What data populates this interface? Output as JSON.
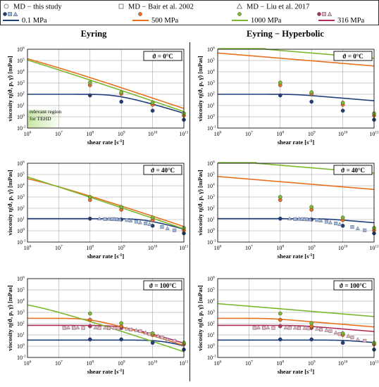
{
  "legend": {
    "markers": [
      {
        "id": "md_this",
        "label": "MD − this study",
        "shape": "circle"
      },
      {
        "id": "md_bair",
        "label": "MD − Bair et al. 2002",
        "shape": "square"
      },
      {
        "id": "md_liu",
        "label": "MD − Liu et al. 2017",
        "shape": "triangle"
      }
    ],
    "lines": [
      {
        "id": "p01",
        "label": "0.1 MPa",
        "color": "#1f3f7a"
      },
      {
        "id": "p500",
        "label": "500 MPa",
        "color": "#e8701f"
      },
      {
        "id": "p1000",
        "label": "1000 MPa",
        "color": "#7cb82f"
      },
      {
        "id": "p316",
        "label": "316 MPa",
        "color": "#b0305a"
      }
    ]
  },
  "colors": {
    "p01": "#1f3f7a",
    "p500": "#e8701f",
    "p1000": "#7cb82f",
    "p316": "#b0305a",
    "relevant": "#c7e5a4"
  },
  "columns": [
    {
      "title": "Eyring"
    },
    {
      "title": "Eyring − Hyperbolic"
    }
  ],
  "axis": {
    "xlabel": "shear rate [s",
    "xlabel_sup": "-1",
    "xlabel_end": "]",
    "ylabel": "viscosity η(ϑ, p, γ̇) [mPas]",
    "x_exponents": [
      6,
      7,
      8,
      9,
      10,
      11
    ],
    "y_exponents": [
      -1,
      0,
      1,
      2,
      3,
      4,
      5,
      6
    ],
    "tick_base": "10",
    "xlim_log10": [
      6,
      11
    ],
    "ylim_log10": [
      -1,
      6
    ],
    "xscale": "log",
    "yscale": "log",
    "grid": true
  },
  "annotation": {
    "line1": "relevant region",
    "line2": "for TEHD",
    "x_range_log10": [
      6,
      7.1
    ]
  },
  "chart_data": [
    {
      "type": "line",
      "col": 0,
      "row": 0,
      "temp_label": "ϑ = 0°C",
      "series": [
        {
          "key": "p01",
          "eta0": 100,
          "tau": 32000000000.0,
          "n": 0.77,
          "hyperbolic": false
        },
        {
          "key": "p500",
          "eta0": 1000000.0,
          "tau": 35000000000.0,
          "n": 0.77,
          "hyperbolic": false
        },
        {
          "key": "p1000",
          "eta0": 10000000.0,
          "tau": 15500000000.0,
          "n": 0.77,
          "hyperbolic": false
        }
      ],
      "points": [
        {
          "key": "p01",
          "shape": "circle",
          "x": [
            100000000.0,
            1000000000.0,
            10000000000.0,
            100000000000.0
          ],
          "y": [
            80,
            22,
            3.5,
            0.55
          ]
        },
        {
          "key": "p500",
          "shape": "circle",
          "x": [
            100000000.0,
            1000000000.0,
            10000000000.0,
            100000000000.0
          ],
          "y": [
            650,
            110,
            12,
            1.3
          ]
        },
        {
          "key": "p1000",
          "shape": "circle",
          "x": [
            100000000.0,
            1000000000.0,
            10000000000.0,
            100000000000.0
          ],
          "y": [
            1100,
            150,
            18,
            2.0
          ]
        }
      ]
    },
    {
      "type": "line",
      "col": 1,
      "row": 0,
      "temp_label": "ϑ = 0°C",
      "series": [
        {
          "key": "p01",
          "eta0": 100,
          "tau": 32000000000.0,
          "n": 0.77,
          "hyperbolic": true
        },
        {
          "key": "p500",
          "eta0": 1000000.0,
          "tau": 35000000000.0,
          "n": 0.77,
          "hyperbolic": true
        },
        {
          "key": "p1000",
          "eta0": 10000000.0,
          "tau": 15500000000.0,
          "n": 0.77,
          "hyperbolic": true
        }
      ],
      "points": [
        {
          "key": "p01",
          "shape": "circle",
          "x": [
            100000000.0,
            1000000000.0,
            10000000000.0,
            100000000000.0
          ],
          "y": [
            80,
            22,
            3.5,
            0.55
          ]
        },
        {
          "key": "p500",
          "shape": "circle",
          "x": [
            100000000.0,
            1000000000.0,
            10000000000.0,
            100000000000.0
          ],
          "y": [
            650,
            110,
            12,
            1.3
          ]
        },
        {
          "key": "p1000",
          "shape": "circle",
          "x": [
            100000000.0,
            1000000000.0,
            10000000000.0,
            100000000000.0
          ],
          "y": [
            1100,
            150,
            18,
            2.0
          ]
        }
      ]
    },
    {
      "type": "line",
      "col": 0,
      "row": 1,
      "temp_label": "ϑ = 40°C",
      "series": [
        {
          "key": "p01",
          "eta0": 12,
          "tau": 32000000000.0,
          "n": 0.77,
          "hyperbolic": false
        },
        {
          "key": "p500",
          "eta0": 100000.0,
          "tau": 17000000000.0,
          "n": 0.77,
          "hyperbolic": false
        },
        {
          "key": "p1000",
          "eta0": 10000000.0,
          "tau": 7700000000.0,
          "n": 0.77,
          "hyperbolic": false
        }
      ],
      "points": [
        {
          "key": "p01",
          "shape": "circle",
          "x": [
            100000000.0,
            1000000000.0,
            10000000000.0,
            100000000000.0
          ],
          "y": [
            12,
            10,
            2.8,
            0.6
          ]
        },
        {
          "key": "p01",
          "shape": "square",
          "x": [
            300000000.0,
            500000000.0,
            700000000.0,
            1500000000.0,
            3000000000.0,
            6000000000.0,
            20000000000.0,
            50000000000.0
          ],
          "y": [
            11,
            11,
            10.5,
            9,
            6.5,
            4.5,
            2.2,
            1.1
          ]
        },
        {
          "key": "p01",
          "shape": "triangle",
          "x": [
            200000000.0,
            400000000.0,
            600000000.0,
            900000000.0,
            2000000000.0,
            4000000000.0,
            8000000000.0,
            30000000000.0
          ],
          "y": [
            12,
            11.5,
            11,
            10,
            8,
            5.5,
            3.8,
            1.6
          ]
        },
        {
          "key": "p500",
          "shape": "circle",
          "x": [
            100000000.0,
            1000000000.0,
            10000000000.0,
            100000000000.0
          ],
          "y": [
            550,
            75,
            9,
            1.1
          ]
        },
        {
          "key": "p1000",
          "shape": "circle",
          "x": [
            100000000.0,
            1000000000.0,
            10000000000.0,
            100000000000.0
          ],
          "y": [
            1000,
            130,
            15,
            1.8
          ]
        }
      ]
    },
    {
      "type": "line",
      "col": 1,
      "row": 1,
      "temp_label": "ϑ = 40°C",
      "series": [
        {
          "key": "p01",
          "eta0": 12,
          "tau": 32000000000.0,
          "n": 0.77,
          "hyperbolic": true
        },
        {
          "key": "p500",
          "eta0": 100000.0,
          "tau": 17000000000.0,
          "n": 0.77,
          "hyperbolic": true
        },
        {
          "key": "p1000",
          "eta0": 10000000.0,
          "tau": 7700000000.0,
          "n": 0.77,
          "hyperbolic": true
        }
      ],
      "points": [
        {
          "key": "p01",
          "shape": "circle",
          "x": [
            100000000.0,
            1000000000.0,
            10000000000.0,
            100000000000.0
          ],
          "y": [
            12,
            10,
            2.8,
            0.6
          ]
        },
        {
          "key": "p01",
          "shape": "square",
          "x": [
            300000000.0,
            500000000.0,
            700000000.0,
            1500000000.0,
            3000000000.0,
            6000000000.0,
            20000000000.0,
            50000000000.0
          ],
          "y": [
            11,
            11,
            10.5,
            9,
            6.5,
            4.5,
            2.2,
            1.1
          ]
        },
        {
          "key": "p01",
          "shape": "triangle",
          "x": [
            200000000.0,
            400000000.0,
            600000000.0,
            900000000.0,
            2000000000.0,
            4000000000.0,
            8000000000.0,
            30000000000.0
          ],
          "y": [
            12,
            11.5,
            11,
            10,
            8,
            5.5,
            3.8,
            1.6
          ]
        },
        {
          "key": "p500",
          "shape": "circle",
          "x": [
            100000000.0,
            1000000000.0,
            10000000000.0,
            100000000000.0
          ],
          "y": [
            550,
            75,
            9,
            1.1
          ]
        },
        {
          "key": "p1000",
          "shape": "circle",
          "x": [
            100000000.0,
            1000000000.0,
            10000000000.0,
            100000000000.0
          ],
          "y": [
            1000,
            130,
            15,
            1.8
          ]
        }
      ]
    },
    {
      "type": "line",
      "col": 0,
      "row": 2,
      "temp_label": "ϑ = 100°C",
      "series": [
        {
          "key": "p01",
          "eta0": 3.5,
          "tau": 37000000000.0,
          "n": 0.77,
          "hyperbolic": false
        },
        {
          "key": "p316",
          "eta0": 70,
          "tau": 30000000000.0,
          "n": 0.77,
          "hyperbolic": false
        },
        {
          "key": "p500",
          "eta0": 300,
          "tau": 14000000000.0,
          "n": 0.77,
          "hyperbolic": false
        },
        {
          "key": "p1000",
          "eta0": 8000,
          "tau": 2400000000.0,
          "n": 0.77,
          "hyperbolic": false
        }
      ],
      "points": [
        {
          "key": "p01",
          "shape": "circle",
          "x": [
            100000000.0,
            1000000000.0,
            10000000000.0,
            100000000000.0
          ],
          "y": [
            4,
            4,
            2,
            0.5
          ]
        },
        {
          "key": "p316",
          "shape": "circle",
          "x": [
            100000000.0,
            1000000000.0,
            10000000000.0,
            100000000000.0
          ],
          "y": [
            60,
            42,
            12,
            1.5
          ]
        },
        {
          "key": "p316",
          "shape": "square",
          "x": [
            15000000.0,
            30000000.0,
            60000000.0,
            200000000.0,
            400000000.0,
            800000000.0,
            2000000000.0,
            4000000000.0,
            8000000000.0,
            20000000000.0,
            50000000000.0
          ],
          "y": [
            42,
            42,
            41,
            42,
            40,
            38,
            30,
            22,
            12,
            6,
            3
          ]
        },
        {
          "key": "p316",
          "shape": "triangle",
          "x": [
            20000000.0,
            40000000.0,
            150000000.0,
            300000000.0,
            600000000.0,
            1500000000.0,
            3000000000.0,
            6000000000.0,
            15000000000.0,
            30000000000.0
          ],
          "y": [
            45,
            44,
            44,
            43,
            41,
            35,
            26,
            16,
            8,
            4
          ]
        },
        {
          "key": "p500",
          "shape": "circle",
          "x": [
            100000000.0,
            1000000000.0,
            10000000000.0,
            100000000000.0
          ],
          "y": [
            220,
            60,
            10,
            1.5
          ]
        },
        {
          "key": "p1000",
          "shape": "circle",
          "x": [
            100000000.0,
            1000000000.0,
            10000000000.0,
            100000000000.0
          ],
          "y": [
            800,
            110,
            14,
            2.0
          ]
        }
      ]
    },
    {
      "type": "line",
      "col": 1,
      "row": 2,
      "temp_label": "ϑ = 100°C",
      "series": [
        {
          "key": "p01",
          "eta0": 3.5,
          "tau": 37000000000.0,
          "n": 0.77,
          "hyperbolic": true
        },
        {
          "key": "p316",
          "eta0": 70,
          "tau": 30000000000.0,
          "n": 0.77,
          "hyperbolic": true
        },
        {
          "key": "p500",
          "eta0": 300,
          "tau": 14000000000.0,
          "n": 0.77,
          "hyperbolic": true
        },
        {
          "key": "p1000",
          "eta0": 8000,
          "tau": 2400000000.0,
          "n": 0.77,
          "hyperbolic": true
        }
      ],
      "points": [
        {
          "key": "p01",
          "shape": "circle",
          "x": [
            100000000.0,
            1000000000.0,
            10000000000.0,
            100000000000.0
          ],
          "y": [
            4,
            4,
            2,
            0.5
          ]
        },
        {
          "key": "p316",
          "shape": "circle",
          "x": [
            100000000.0,
            1000000000.0,
            10000000000.0,
            100000000000.0
          ],
          "y": [
            60,
            42,
            12,
            1.5
          ]
        },
        {
          "key": "p316",
          "shape": "square",
          "x": [
            15000000.0,
            30000000.0,
            60000000.0,
            200000000.0,
            400000000.0,
            800000000.0,
            2000000000.0,
            4000000000.0,
            8000000000.0,
            20000000000.0,
            50000000000.0
          ],
          "y": [
            42,
            42,
            41,
            42,
            40,
            38,
            30,
            22,
            12,
            6,
            3
          ]
        },
        {
          "key": "p316",
          "shape": "triangle",
          "x": [
            20000000.0,
            40000000.0,
            150000000.0,
            300000000.0,
            600000000.0,
            1500000000.0,
            3000000000.0,
            6000000000.0,
            15000000000.0,
            30000000000.0
          ],
          "y": [
            45,
            44,
            44,
            43,
            41,
            35,
            26,
            16,
            8,
            4
          ]
        },
        {
          "key": "p500",
          "shape": "circle",
          "x": [
            100000000.0,
            1000000000.0,
            10000000000.0,
            100000000000.0
          ],
          "y": [
            220,
            60,
            10,
            1.5
          ]
        },
        {
          "key": "p1000",
          "shape": "circle",
          "x": [
            100000000.0,
            1000000000.0,
            10000000000.0,
            100000000000.0
          ],
          "y": [
            800,
            110,
            14,
            2.0
          ]
        }
      ]
    }
  ]
}
